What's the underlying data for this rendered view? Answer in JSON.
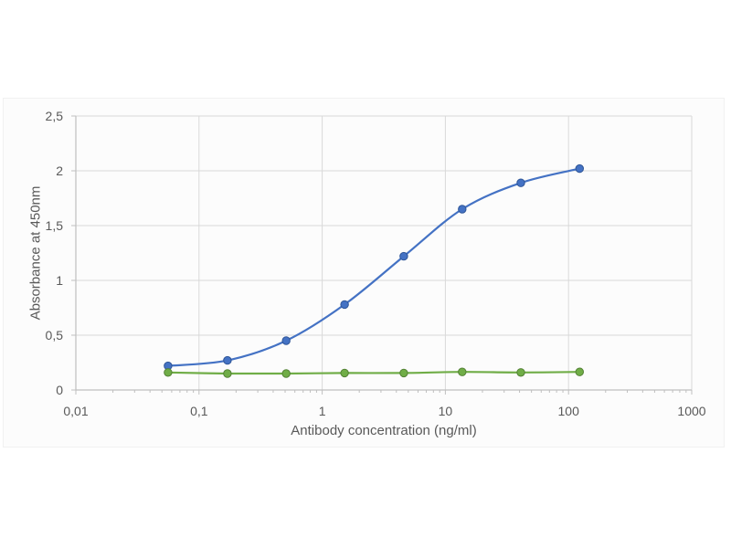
{
  "canvas": {
    "background": "#ffffff",
    "frame_background": "#fcfcfc"
  },
  "chart_data": {
    "type": "line",
    "title": "",
    "xlabel": "Antibody concentration (ng/ml)",
    "ylabel": "Absorbance at 450nm",
    "x_scale": "log",
    "xlim": [
      0.01,
      1000
    ],
    "ylim": [
      0,
      2.5
    ],
    "grid": true,
    "legend": "none",
    "x_tick_values": [
      0.01,
      0.1,
      1,
      10,
      100,
      1000
    ],
    "x_tick_labels": [
      "0,01",
      "0,1",
      "1",
      "10",
      "100",
      "1000"
    ],
    "y_tick_values": [
      0,
      0.5,
      1,
      1.5,
      2,
      2.5
    ],
    "y_tick_labels": [
      "0",
      "0,5",
      "1",
      "1,5",
      "2",
      "2,5"
    ],
    "x": [
      0.056,
      0.17,
      0.51,
      1.52,
      4.6,
      13.7,
      41,
      123
    ],
    "series": [
      {
        "name": "blue-series",
        "color": "#4472c4",
        "marker_stroke": "#2e5597",
        "marker": "circle",
        "smooth": true,
        "values": [
          0.22,
          0.27,
          0.45,
          0.78,
          1.22,
          1.65,
          1.89,
          2.02
        ]
      },
      {
        "name": "green-series",
        "color": "#70ad47",
        "marker_stroke": "#538135",
        "marker": "circle",
        "smooth": true,
        "values": [
          0.16,
          0.15,
          0.15,
          0.155,
          0.155,
          0.165,
          0.16,
          0.165
        ]
      }
    ],
    "style": {
      "grid_color": "#d9d9d9",
      "axis_color": "#bfbfbf",
      "tick_color": "#bfbfbf",
      "label_color": "#595959"
    }
  }
}
